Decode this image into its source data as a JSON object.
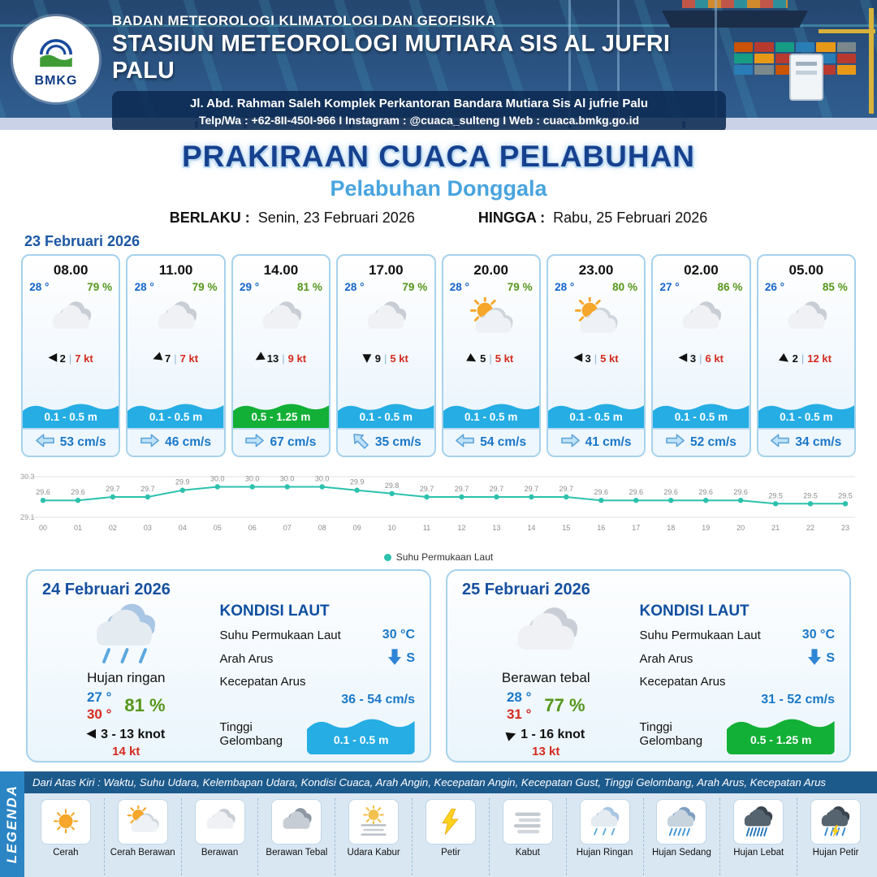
{
  "header": {
    "logo_text": "BMKG",
    "agency": "BADAN METEOROLOGI KLIMATOLOGI DAN GEOFISIKA",
    "station": "STASIUN METEOROLOGI MUTIARA SIS AL JUFRI PALU",
    "address": "Jl. Abd. Rahman Saleh Komplek Perkantoran Bandara Mutiara Sis Al jufrie Palu",
    "contact": "Telp/Wa : +62-8II-450I-966  I  Instagram : @cuaca_sulteng  I  Web : cuaca.bmkg.go.id"
  },
  "title": {
    "main": "PRAKIRAAN CUACA PELABUHAN",
    "sub": "Pelabuhan Donggala",
    "berlaku_label": "BERLAKU :",
    "berlaku_value": "Senin, 23 Februari 2026",
    "hingga_label": "HINGGA :",
    "hingga_value": "Rabu, 25 Februari 2026"
  },
  "forecast": {
    "date": "23 Februari 2026",
    "cards": [
      {
        "time": "08.00",
        "temp": "28 °",
        "humidity": "79 %",
        "icon": "berawan",
        "wind_rot": 180,
        "wind_val": "2",
        "wind_speed": "7 kt",
        "wave": "0.1 - 0.5 m",
        "wave_color": "#25ade4",
        "current": "53 cm/s",
        "current_rot": 0
      },
      {
        "time": "11.00",
        "temp": "28 °",
        "humidity": "79 %",
        "icon": "berawan",
        "wind_rot": 160,
        "wind_val": "7",
        "wind_speed": "7 kt",
        "wave": "0.1 - 0.5 m",
        "wave_color": "#25ade4",
        "current": "46 cm/s",
        "current_rot": 180
      },
      {
        "time": "14.00",
        "temp": "29 °",
        "humidity": "81 %",
        "icon": "berawan",
        "wind_rot": 150,
        "wind_val": "13",
        "wind_speed": "9 kt",
        "wave": "0.5 - 1.25 m",
        "wave_color": "#12b036",
        "current": "67 cm/s",
        "current_rot": 180
      },
      {
        "time": "17.00",
        "temp": "28 °",
        "humidity": "79 %",
        "icon": "berawan",
        "wind_rot": 90,
        "wind_val": "9",
        "wind_speed": "5 kt",
        "wave": "0.1 - 0.5 m",
        "wave_color": "#25ade4",
        "current": "35 cm/s",
        "current_rot": 45
      },
      {
        "time": "20.00",
        "temp": "28 °",
        "humidity": "79 %",
        "icon": "cerah-berawan",
        "wind_rot": 30,
        "wind_val": "5",
        "wind_speed": "5 kt",
        "wave": "0.1 - 0.5 m",
        "wave_color": "#25ade4",
        "current": "54 cm/s",
        "current_rot": 0
      },
      {
        "time": "23.00",
        "temp": "28 °",
        "humidity": "80 %",
        "icon": "cerah-berawan",
        "wind_rot": 180,
        "wind_val": "3",
        "wind_speed": "5 kt",
        "wave": "0.1 - 0.5 m",
        "wave_color": "#25ade4",
        "current": "41 cm/s",
        "current_rot": 180
      },
      {
        "time": "02.00",
        "temp": "27 °",
        "humidity": "86 %",
        "icon": "berawan",
        "wind_rot": 180,
        "wind_val": "3",
        "wind_speed": "6 kt",
        "wave": "0.1 - 0.5 m",
        "wave_color": "#25ade4",
        "current": "52 cm/s",
        "current_rot": 180
      },
      {
        "time": "05.00",
        "temp": "26 °",
        "humidity": "85 %",
        "icon": "berawan",
        "wind_rot": 35,
        "wind_val": "2",
        "wind_speed": "12 kt",
        "wave": "0.1 - 0.5 m",
        "wave_color": "#25ade4",
        "current": "34 cm/s",
        "current_rot": 0
      }
    ]
  },
  "chart_data": {
    "type": "line",
    "title": "",
    "xlabel": "",
    "ylabel": "",
    "x": [
      "00",
      "01",
      "02",
      "03",
      "04",
      "05",
      "06",
      "07",
      "08",
      "09",
      "10",
      "11",
      "12",
      "13",
      "14",
      "15",
      "16",
      "17",
      "18",
      "19",
      "20",
      "21",
      "22",
      "23"
    ],
    "series": [
      {
        "name": "Suhu Permukaan Laut",
        "values": [
          29.6,
          29.6,
          29.7,
          29.7,
          29.9,
          30.0,
          30.0,
          30.0,
          30.0,
          29.9,
          29.8,
          29.7,
          29.7,
          29.7,
          29.7,
          29.7,
          29.6,
          29.6,
          29.6,
          29.6,
          29.6,
          29.5,
          29.5,
          29.5
        ]
      }
    ],
    "ylim": [
      29.1,
      30.3
    ],
    "line_color": "#2cc1ad",
    "legend_label": "Suhu Permukaan Laut",
    "legend_position": "bottom",
    "grid": false
  },
  "days": [
    {
      "date": "24 Februari 2026",
      "icon": "hujan-ringan",
      "condition": "Hujan ringan",
      "temp_min": "27 °",
      "temp_max": "30 °",
      "humidity": "81 %",
      "wind_rot": 180,
      "wind_range": "3  - 13 knot",
      "gust": "14 kt",
      "sea": {
        "title": "KONDISI LAUT",
        "sst_label": "Suhu Permukaan Laut",
        "sst_value": "30 °C",
        "current_dir_label": "Arah Arus",
        "current_dir": "S",
        "current_speed_label": "Kecepatan Arus",
        "current_speed": "36  - 54 cm/s",
        "wave_label": "Tinggi Gelombang",
        "wave_value": "0.1 - 0.5 m",
        "wave_color": "#25ade4"
      }
    },
    {
      "date": "25 Februari 2026",
      "icon": "berawan",
      "condition": "Berawan tebal",
      "temp_min": "28 °",
      "temp_max": "31 °",
      "humidity": "77 %",
      "wind_rot": 340,
      "wind_range": "1  - 16 knot",
      "gust": "13 kt",
      "sea": {
        "title": "KONDISI LAUT",
        "sst_label": "Suhu Permukaan Laut",
        "sst_value": "30 °C",
        "current_dir_label": "Arah Arus",
        "current_dir": "S",
        "current_speed_label": "Kecepatan Arus",
        "current_speed": "31  - 52 cm/s",
        "wave_label": "Tinggi Gelombang",
        "wave_value": "0.5 - 1.25 m",
        "wave_color": "#12b036"
      }
    }
  ],
  "legend": {
    "title": "LEGENDA",
    "description": "Dari Atas Kiri : Waktu, Suhu Udara, Kelembapan Udara, Kondisi Cuaca, Arah Angin, Kecepatan Angin, Kecepatan Gust, Tinggi Gelombang, Arah Arus, Kecepatan Arus",
    "items": [
      {
        "icon": "cerah",
        "label": "Cerah"
      },
      {
        "icon": "cerah-berawan",
        "label": "Cerah Berawan"
      },
      {
        "icon": "berawan",
        "label": "Berawan"
      },
      {
        "icon": "berawan-tebal",
        "label": "Berawan Tebal"
      },
      {
        "icon": "udara-kabur",
        "label": "Udara Kabur"
      },
      {
        "icon": "petir",
        "label": "Petir"
      },
      {
        "icon": "kabut",
        "label": "Kabut"
      },
      {
        "icon": "hujan-ringan",
        "label": "Hujan Ringan"
      },
      {
        "icon": "hujan-sedang",
        "label": "Hujan Sedang"
      },
      {
        "icon": "hujan-lebat",
        "label": "Hujan Lebat"
      },
      {
        "icon": "hujan-petir",
        "label": "Hujan Petir"
      }
    ]
  }
}
